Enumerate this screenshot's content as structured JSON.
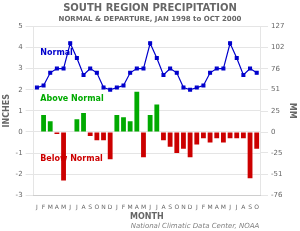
{
  "chart_data": {
    "type": "bar",
    "title": "SOUTH REGION PRECIPITATION",
    "subtitle": "NORMAL & DEPARTURE, JAN 1998 to OCT 2000",
    "xlabel": "MONTH",
    "ylabel": "INCHES",
    "y2label": "MM",
    "credit": "National Climatic Data Center, NOAA",
    "categories": [
      "J",
      "F",
      "M",
      "A",
      "M",
      "J",
      "J",
      "A",
      "S",
      "O",
      "N",
      "D",
      "J",
      "F",
      "M",
      "A",
      "M",
      "J",
      "J",
      "A",
      "S",
      "O",
      "N",
      "D",
      "J",
      "F",
      "M",
      "A",
      "M",
      "J",
      "J",
      "A",
      "S",
      "O"
    ],
    "series": [
      {
        "type": "bar",
        "values": [
          0.0,
          0.8,
          0.5,
          -0.1,
          -2.3,
          0.0,
          0.6,
          0.9,
          -0.2,
          -0.4,
          -0.4,
          -1.3,
          0.8,
          0.7,
          0.5,
          1.9,
          -1.2,
          0.8,
          1.3,
          -0.4,
          -0.7,
          -1.0,
          -0.8,
          -1.2,
          -0.6,
          -0.3,
          -0.5,
          -0.3,
          -0.5,
          -0.3,
          -0.3,
          -0.3,
          -2.2,
          -0.8
        ],
        "colors": [
          "#00aa00",
          "#00aa00",
          "#00aa00",
          "#cc0000",
          "#cc0000",
          "#00aa00",
          "#00aa00",
          "#00aa00",
          "#cc0000",
          "#cc0000",
          "#cc0000",
          "#cc0000",
          "#00aa00",
          "#00aa00",
          "#00aa00",
          "#00aa00",
          "#cc0000",
          "#00aa00",
          "#00aa00",
          "#cc0000",
          "#cc0000",
          "#cc0000",
          "#cc0000",
          "#cc0000",
          "#cc0000",
          "#cc0000",
          "#cc0000",
          "#cc0000",
          "#cc0000",
          "#cc0000",
          "#cc0000",
          "#cc0000",
          "#cc0000",
          "#cc0000"
        ]
      },
      {
        "type": "line",
        "color": "#0000cc",
        "marker": "square",
        "values": [
          2.1,
          2.2,
          2.8,
          3.0,
          3.0,
          4.2,
          3.5,
          2.7,
          3.0,
          2.8,
          2.1,
          2.0,
          2.1,
          2.2,
          2.8,
          3.0,
          3.0,
          4.2,
          3.5,
          2.7,
          3.0,
          2.8,
          2.1,
          2.0,
          2.1,
          2.2,
          2.8,
          3.0,
          3.0,
          4.2,
          3.5,
          2.7,
          3.0,
          2.8
        ]
      }
    ],
    "ylim": [
      -3,
      5
    ],
    "yticks": [
      -3,
      -2,
      -1,
      0,
      1,
      2,
      3,
      4,
      5
    ],
    "y2lim": [
      -76,
      127
    ],
    "y2ticks": [
      -76,
      -51,
      -25,
      0,
      25,
      51,
      76,
      102,
      127
    ],
    "grid": true,
    "annotations": [
      {
        "text": "Normal",
        "y": 3.75,
        "color": "#0000cc"
      },
      {
        "text": "Above Normal",
        "y": 1.55,
        "color": "#00aa00"
      },
      {
        "text": "Below Normal",
        "y": -1.3,
        "color": "#cc0000"
      }
    ]
  }
}
